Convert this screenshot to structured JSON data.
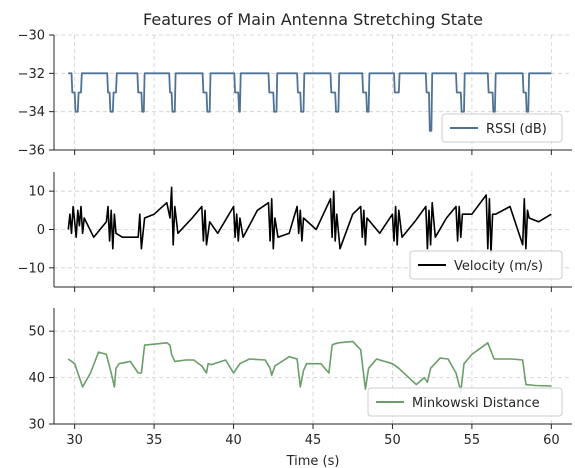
{
  "chart_data": {
    "type": "line",
    "title": "Features of Main Antenna Stretching State",
    "xlabel": "Time (s)",
    "xlim": [
      28.7,
      61.3
    ],
    "xticks": [
      30,
      35,
      40,
      45,
      50,
      55,
      60
    ],
    "grid": true,
    "sharex": true,
    "panels": [
      {
        "series_name": "RSSI (dB)",
        "color": "#4f7396",
        "legend": "bottom-right",
        "ylim": [
          -36,
          -30
        ],
        "yticks": [
          -30,
          -32,
          -34,
          -36
        ],
        "x": [
          29.6,
          29.8,
          29.85,
          30.0,
          30.05,
          30.2,
          30.25,
          30.4,
          30.45,
          32.05,
          32.1,
          32.2,
          32.25,
          32.4,
          32.45,
          32.6,
          32.65,
          33.95,
          34.0,
          34.2,
          34.25,
          34.35,
          34.4,
          35.95,
          36.0,
          36.1,
          36.15,
          36.3,
          36.35,
          38.05,
          38.1,
          38.3,
          38.35,
          38.5,
          38.55,
          40.05,
          40.1,
          40.3,
          40.35,
          40.4,
          40.45,
          42.2,
          42.25,
          42.5,
          42.55,
          42.7,
          42.75,
          44.0,
          44.05,
          44.2,
          44.25,
          44.4,
          44.45,
          46.1,
          46.15,
          46.4,
          46.45,
          46.6,
          46.65,
          48.1,
          48.15,
          48.35,
          48.4,
          48.5,
          48.55,
          50.1,
          50.15,
          50.4,
          50.45,
          52.1,
          52.15,
          52.3,
          52.35,
          52.45,
          52.5,
          54.0,
          54.05,
          54.3,
          54.35,
          54.5,
          54.55,
          56.0,
          56.05,
          56.3,
          56.35,
          56.45,
          56.5,
          58.2,
          58.25,
          58.4,
          58.45,
          58.55,
          58.6,
          60.0
        ],
        "y": [
          -32,
          -32,
          -33,
          -33,
          -34,
          -34,
          -33,
          -33,
          -32,
          -32,
          -33,
          -33,
          -34,
          -34,
          -33,
          -33,
          -32,
          -32,
          -33,
          -33,
          -34,
          -34,
          -32,
          -32,
          -33,
          -33,
          -34,
          -34,
          -32,
          -32,
          -33,
          -33,
          -34,
          -34,
          -32,
          -32,
          -33,
          -33,
          -34,
          -34,
          -32,
          -32,
          -33,
          -33,
          -34,
          -34,
          -32,
          -32,
          -33,
          -33,
          -34,
          -34,
          -32,
          -32,
          -33,
          -33,
          -34,
          -34,
          -32,
          -32,
          -33,
          -33,
          -34,
          -34,
          -32,
          -32,
          -33,
          -33,
          -32,
          -32,
          -33,
          -33,
          -35,
          -35,
          -32,
          -32,
          -33,
          -33,
          -34,
          -34,
          -32,
          -32,
          -33,
          -33,
          -34,
          -34,
          -32,
          -32,
          -33,
          -33,
          -34,
          -34,
          -32,
          -32
        ]
      },
      {
        "series_name": "Velocity (m/s)",
        "color": "#000000",
        "legend": "bottom-right",
        "ylim": [
          -15,
          15
        ],
        "yticks": [
          10,
          0,
          -10
        ],
        "x": [
          29.6,
          29.7,
          29.8,
          29.9,
          30.0,
          30.1,
          30.2,
          30.3,
          30.4,
          30.5,
          30.6,
          31.2,
          32.0,
          32.1,
          32.2,
          32.3,
          32.4,
          32.5,
          32.6,
          33.0,
          34.0,
          34.1,
          34.2,
          34.4,
          35.0,
          35.8,
          36.0,
          36.1,
          36.2,
          36.3,
          36.5,
          37.4,
          38.0,
          38.1,
          38.2,
          38.3,
          38.5,
          39.0,
          40.0,
          40.1,
          40.2,
          40.3,
          40.4,
          40.6,
          41.5,
          42.2,
          42.3,
          42.4,
          42.5,
          42.6,
          42.8,
          43.5,
          44.0,
          44.1,
          44.2,
          44.3,
          44.4,
          45.2,
          46.1,
          46.2,
          46.3,
          46.4,
          46.5,
          46.7,
          47.5,
          48.0,
          48.1,
          48.2,
          48.3,
          48.4,
          49.2,
          50.0,
          50.1,
          50.2,
          50.3,
          50.4,
          50.6,
          51.4,
          52.1,
          52.2,
          52.3,
          52.4,
          52.5,
          52.7,
          53.4,
          54.0,
          54.1,
          54.2,
          54.3,
          54.4,
          55.0,
          55.9,
          56.0,
          56.1,
          56.2,
          56.3,
          56.5,
          57.4,
          58.2,
          58.3,
          58.4,
          58.5,
          58.6,
          59.2,
          60.0
        ],
        "y": [
          0,
          4,
          -1,
          6,
          2,
          -2,
          5,
          1,
          6,
          -1,
          3,
          -2,
          2,
          6,
          -3,
          5,
          -5,
          4,
          -1,
          -2,
          -2,
          4,
          -5,
          3,
          4,
          7,
          3,
          11,
          -4,
          6,
          -1,
          3,
          6,
          -3,
          5,
          -4,
          2,
          -1,
          6,
          -2,
          4,
          -3,
          3,
          -2,
          5,
          7,
          -3,
          8,
          -5,
          3,
          -2,
          -1,
          6,
          -1,
          5,
          -3,
          3,
          0,
          8,
          -2,
          10,
          -3,
          4,
          -5,
          4,
          6,
          -2,
          5,
          -4,
          3,
          -1,
          4,
          -3,
          6,
          -4,
          5,
          -2,
          2,
          6,
          -5,
          5,
          -4,
          7,
          -2,
          3,
          6,
          -3,
          6,
          -2,
          4,
          4,
          9,
          -5,
          8,
          -6,
          4,
          4,
          6,
          -4,
          8,
          -5,
          5,
          3,
          2,
          4
        ]
      },
      {
        "series_name": "Minkowski Distance",
        "color": "#6a9e6a",
        "legend": "bottom-right",
        "ylim": [
          30,
          55
        ],
        "yticks": [
          50,
          40,
          30
        ],
        "x": [
          29.6,
          30.0,
          30.5,
          31.0,
          31.5,
          32.0,
          32.3,
          32.5,
          32.6,
          32.8,
          33.5,
          34.0,
          34.2,
          34.4,
          35.0,
          35.8,
          36.0,
          36.1,
          36.3,
          37.0,
          37.5,
          38.0,
          38.3,
          38.4,
          38.6,
          39.5,
          40.0,
          40.2,
          40.4,
          41.0,
          42.0,
          42.3,
          42.4,
          42.6,
          43.5,
          44.0,
          44.2,
          44.4,
          44.6,
          45.5,
          46.0,
          46.2,
          46.3,
          46.6,
          47.5,
          48.0,
          48.3,
          48.5,
          49.0,
          50.0,
          50.4,
          51.5,
          52.0,
          52.2,
          52.4,
          53.0,
          53.5,
          54.0,
          54.3,
          54.5,
          55.0,
          56.0,
          56.4,
          57.5,
          58.2,
          58.4,
          59.0,
          60.0
        ],
        "y": [
          44,
          43,
          38,
          41,
          45.5,
          45,
          41,
          38,
          42,
          43,
          43.5,
          41,
          41,
          47,
          47.2,
          47.5,
          47,
          45,
          43.5,
          43.8,
          43.8,
          42.5,
          41,
          43,
          42.8,
          43.8,
          41,
          42,
          43,
          44,
          43.8,
          42,
          40.5,
          42.5,
          44.5,
          44,
          38,
          41.5,
          43,
          43,
          41,
          47,
          47.2,
          47.5,
          47.8,
          46,
          37.5,
          42,
          44,
          43,
          42,
          38.5,
          40,
          39,
          42,
          44.2,
          44,
          41,
          37,
          43,
          45,
          47.5,
          44,
          44,
          43.8,
          38.5,
          38.3,
          38.2
        ]
      }
    ]
  }
}
